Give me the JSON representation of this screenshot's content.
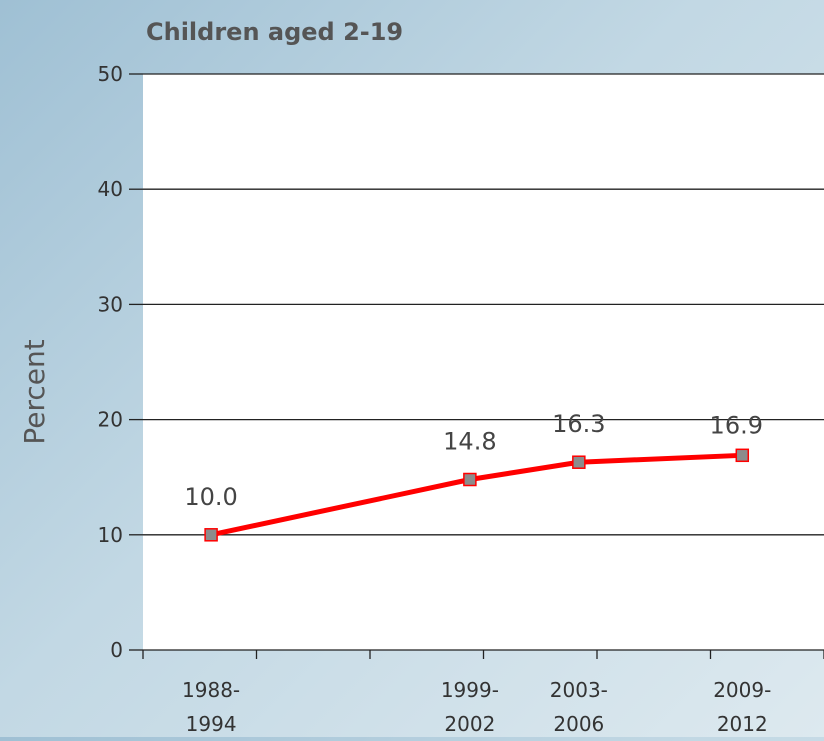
{
  "colors": {
    "line": "#ff0000",
    "marker_fill": "#8c8c8c",
    "marker_stroke": "#ff0000",
    "plot_background": "#ffffff",
    "gridline": "#222222"
  },
  "chart_data": {
    "type": "line",
    "title": "Children aged 2-19",
    "ylabel": "Percent",
    "xlabel": "",
    "categories": [
      [
        "1988-",
        "1994"
      ],
      [
        "1999-",
        "2002"
      ],
      [
        "2003-",
        "2006"
      ],
      [
        "2009-",
        "2012"
      ]
    ],
    "x_positions_years": [
      1991,
      2000.5,
      2004.5,
      2010.5
    ],
    "values": [
      10.0,
      14.8,
      16.3,
      16.9
    ],
    "data_labels": [
      "10.0",
      "14.8",
      "16.3",
      "16.9"
    ],
    "ylim": [
      0,
      50
    ],
    "yticks": [
      0,
      10,
      20,
      30,
      40,
      50
    ],
    "xlim_years": [
      1988.5,
      2013.5
    ],
    "grid": true,
    "legend": "none"
  }
}
